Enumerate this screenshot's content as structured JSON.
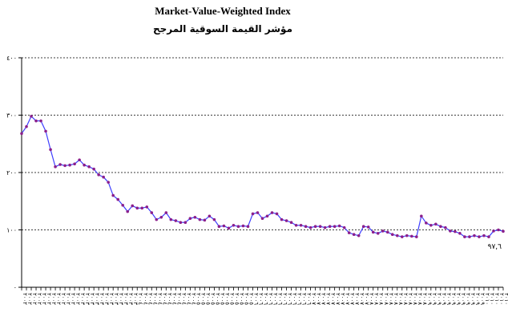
{
  "chart_data": {
    "type": "line",
    "title": "Market-Value-Weighted Index",
    "subtitle": "مؤشر القيمة السوقية المرجح",
    "xlabel": "",
    "ylabel": "",
    "ylim": [
      0,
      400
    ],
    "yticks": [
      0,
      100,
      200,
      300,
      400
    ],
    "ytick_labels": [
      "٠",
      "١٠٠",
      "٢٠٠",
      "٣٠٠",
      "٤٠٠"
    ],
    "grid": "horizontal-dashed",
    "legend": "none",
    "colors": {
      "line": "#3d3dff",
      "marker": "#8b1f8b",
      "axis": "#000000",
      "grid": "#000000"
    },
    "values": [
      268,
      280,
      298,
      290,
      290,
      272,
      240,
      210,
      214,
      212,
      213,
      215,
      222,
      213,
      210,
      206,
      196,
      192,
      183,
      160,
      153,
      143,
      132,
      142,
      138,
      138,
      140,
      130,
      118,
      122,
      130,
      118,
      116,
      113,
      113,
      120,
      122,
      118,
      117,
      124,
      118,
      106,
      107,
      103,
      108,
      106,
      107,
      106,
      128,
      130,
      120,
      124,
      130,
      128,
      118,
      116,
      113,
      108,
      108,
      106,
      104,
      106,
      106,
      104,
      106,
      106,
      107,
      104,
      95,
      92,
      90,
      106,
      105,
      96,
      94,
      98,
      96,
      92,
      90,
      88,
      90,
      89,
      88,
      124,
      112,
      108,
      110,
      106,
      104,
      98,
      97,
      94,
      88,
      88,
      90,
      88,
      90,
      88,
      98,
      100,
      97.6
    ],
    "annotations": [
      {
        "text": "٩٧,٦",
        "x_index": 100,
        "y": 97.6
      }
    ],
    "x_tick_labels": [
      "٢٠٠٢",
      "٢٠٠٢",
      "٢٠٠٢",
      "٢٠٠٢",
      "٢٠٠٢",
      "٢٠٠٢",
      "٢٠٠٢",
      "٢٠٠٢",
      "٢٠٠٢",
      "٢٠٠٢",
      "٢٠٠٢",
      "٢٠٠٢",
      "٢٠٠٣",
      "٢٠٠٣",
      "٢٠٠٣",
      "٢٠٠٣",
      "٢٠٠٣",
      "٢٠٠٣",
      "٢٠٠٣",
      "٢٠٠٣",
      "٢٠٠٣",
      "٢٠٠٣",
      "٢٠٠٣",
      "٢٠٠٣",
      "٢٠٠٤",
      "٢٠٠٤",
      "٢٠٠٤",
      "٢٠٠٤",
      "٢٠٠٤",
      "٢٠٠٤",
      "٢٠٠٤",
      "٢٠٠٤",
      "٢٠٠٤",
      "٢٠٠٤",
      "٢٠٠٤",
      "٢٠٠٤",
      "٢٠٠٥",
      "٢٠٠٥",
      "٢٠٠٥",
      "٢٠٠٥",
      "٢٠٠٥",
      "٢٠٠٥",
      "٢٠٠٥",
      "٢٠٠٥",
      "٢٠٠٥",
      "٢٠٠٥",
      "٢٠٠٥",
      "٢٠٠٥",
      "٢٠٠٦",
      "٢٠٠٦",
      "٢٠٠٦",
      "٢٠٠٦",
      "٢٠٠٦",
      "٢٠٠٦",
      "٢٠٠٦",
      "٢٠٠٦",
      "٢٠٠٦",
      "٢٠٠٦",
      "٢٠٠٦",
      "٢٠٠٦",
      "٢٠٠٧",
      "٢٠٠٧",
      "٢٠٠٧",
      "٢٠٠٧",
      "٢٠٠٧",
      "٢٠٠٧",
      "٢٠٠٧",
      "٢٠٠٧",
      "٢٠٠٧",
      "٢٠٠٧",
      "٢٠٠٧",
      "٢٠٠٧",
      "٢٠٠٨",
      "٢٠٠٨",
      "٢٠٠٨",
      "٢٠٠٨",
      "٢٠٠٨",
      "٢٠٠٨",
      "٢٠٠٨",
      "٢٠٠٨",
      "٢٠٠٨",
      "٢٠٠٨",
      "٢٠٠٨",
      "٢٠٠٨",
      "٢٠٠٩",
      "٢٠٠٩",
      "٢٠٠٩",
      "٢٠٠٩",
      "٢٠٠٩",
      "٢٠٠٩",
      "٢٠٠٩",
      "٢٠٠٩",
      "٢٠٠٩",
      "٢٠٠٩",
      "٢٠٠٩",
      "٢٠٠٩",
      "٢٠١٠",
      "٢٠١٠",
      "٢٠١٠",
      "٢٠١٠",
      "٢٠١٠"
    ]
  }
}
